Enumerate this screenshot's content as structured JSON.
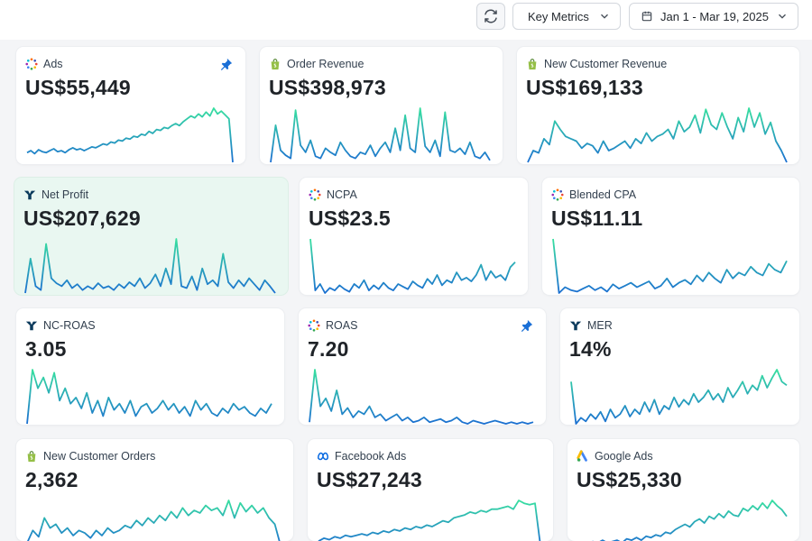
{
  "toolbar": {
    "refresh_icon": "refresh-icon",
    "metrics_label": "Key Metrics",
    "date_range": "Jan 1 - Mar 19, 2025"
  },
  "colors": {
    "line_start": "#1b6fd1",
    "line_end": "#38e0a0",
    "highlight_card": "#e9f7f1",
    "pin": "#1a6fd6"
  },
  "cards": [
    {
      "id": "ads",
      "title": "Ads",
      "value": "US$55,449",
      "icon": "multicolor-dots-icon",
      "pinned": true,
      "trend": [
        10,
        12,
        9,
        13,
        11,
        10,
        12,
        14,
        11,
        12,
        10,
        13,
        15,
        13,
        14,
        12,
        14,
        16,
        15,
        17,
        19,
        18,
        21,
        20,
        23,
        22,
        25,
        24,
        27,
        26,
        29,
        28,
        32,
        30,
        34,
        33,
        36,
        35,
        38,
        40,
        38,
        42,
        45,
        48,
        46,
        50,
        47,
        52,
        48,
        56,
        50,
        53,
        49,
        45,
        0
      ]
    },
    {
      "id": "order-revenue",
      "title": "Order Revenue",
      "value": "US$398,973",
      "icon": "shopify-bag-icon",
      "pinned": false,
      "trend": [
        8,
        45,
        20,
        15,
        12,
        60,
        25,
        18,
        30,
        14,
        12,
        22,
        18,
        15,
        28,
        20,
        14,
        12,
        18,
        16,
        25,
        14,
        22,
        28,
        18,
        42,
        20,
        55,
        22,
        18,
        62,
        24,
        18,
        30,
        14,
        58,
        20,
        18,
        22,
        16,
        28,
        14,
        12,
        18,
        10
      ]
    },
    {
      "id": "new-customer-revenue",
      "title": "New Customer Revenue",
      "value": "US$169,133",
      "icon": "shopify-bag-icon",
      "pinned": false,
      "trend": [
        10,
        20,
        18,
        30,
        25,
        45,
        38,
        32,
        30,
        28,
        22,
        26,
        24,
        18,
        28,
        20,
        22,
        25,
        28,
        22,
        30,
        26,
        35,
        28,
        32,
        34,
        38,
        30,
        45,
        36,
        40,
        50,
        35,
        55,
        42,
        38,
        52,
        40,
        30,
        48,
        36,
        56,
        40,
        52,
        34,
        44,
        28,
        20,
        10
      ]
    },
    {
      "id": "net-profit",
      "title": "Net Profit",
      "value": "US$207,629",
      "icon": "triple-whale-icon",
      "pinned": false,
      "trend": [
        5,
        40,
        12,
        8,
        55,
        20,
        15,
        12,
        18,
        10,
        14,
        8,
        12,
        9,
        15,
        10,
        12,
        8,
        14,
        10,
        16,
        12,
        20,
        10,
        15,
        24,
        12,
        30,
        14,
        60,
        12,
        10,
        22,
        8,
        30,
        14,
        18,
        12,
        45,
        16,
        10,
        18,
        12,
        20,
        14,
        8,
        18,
        12,
        5
      ]
    },
    {
      "id": "ncpa",
      "title": "NCPA",
      "value": "US$23.5",
      "icon": "multicolor-dots-icon",
      "pinned": false,
      "trend": [
        50,
        10,
        15,
        8,
        12,
        10,
        14,
        11,
        9,
        15,
        12,
        18,
        10,
        14,
        11,
        16,
        12,
        10,
        15,
        13,
        11,
        17,
        14,
        12,
        19,
        15,
        22,
        14,
        18,
        16,
        24,
        18,
        20,
        17,
        22,
        30,
        18,
        25,
        20,
        22,
        18,
        28,
        32
      ]
    },
    {
      "id": "blended-cpa",
      "title": "Blended CPA",
      "value": "US$11.11",
      "icon": "multicolor-dots-icon",
      "pinned": false,
      "trend": [
        45,
        8,
        12,
        10,
        9,
        11,
        13,
        10,
        12,
        9,
        14,
        11,
        13,
        15,
        12,
        14,
        16,
        11,
        13,
        18,
        12,
        15,
        17,
        14,
        20,
        16,
        22,
        18,
        15,
        24,
        18,
        22,
        20,
        26,
        22,
        20,
        28,
        24,
        22,
        30
      ]
    },
    {
      "id": "nc-roas",
      "title": "NC-ROAS",
      "value": "3.05",
      "icon": "triple-whale-icon",
      "pinned": false,
      "trend": [
        5,
        40,
        28,
        35,
        25,
        38,
        20,
        28,
        18,
        22,
        15,
        25,
        12,
        20,
        10,
        22,
        14,
        18,
        12,
        20,
        10,
        16,
        18,
        12,
        15,
        20,
        14,
        18,
        12,
        16,
        10,
        20,
        14,
        18,
        12,
        10,
        15,
        12,
        18,
        14,
        16,
        12,
        10,
        15,
        12,
        18
      ]
    },
    {
      "id": "roas",
      "title": "ROAS",
      "value": "7.20",
      "icon": "multicolor-dots-icon",
      "pinned": true,
      "trend": [
        5,
        38,
        15,
        20,
        12,
        25,
        10,
        14,
        8,
        12,
        10,
        15,
        8,
        10,
        6,
        8,
        10,
        6,
        8,
        5,
        6,
        8,
        5,
        6,
        7,
        5,
        6,
        8,
        5,
        4,
        6,
        5,
        4,
        5,
        6,
        5,
        4,
        5,
        4,
        5,
        4,
        5
      ]
    },
    {
      "id": "mer",
      "title": "MER",
      "value": "14%",
      "icon": "triple-whale-icon",
      "pinned": false,
      "trend": [
        45,
        10,
        15,
        12,
        18,
        14,
        20,
        12,
        22,
        15,
        18,
        25,
        16,
        22,
        18,
        28,
        20,
        30,
        18,
        25,
        22,
        32,
        24,
        30,
        26,
        35,
        28,
        32,
        38,
        30,
        35,
        28,
        40,
        32,
        38,
        45,
        35,
        42,
        38,
        50,
        40,
        48,
        55,
        45,
        42
      ]
    },
    {
      "id": "new-customer-orders",
      "title": "New Customer Orders",
      "value": "2,362",
      "icon": "shopify-bag-icon",
      "pinned": false,
      "trend": [
        10,
        20,
        15,
        30,
        22,
        25,
        18,
        22,
        16,
        20,
        18,
        14,
        20,
        16,
        22,
        18,
        20,
        24,
        22,
        28,
        24,
        30,
        26,
        32,
        28,
        35,
        30,
        38,
        32,
        36,
        34,
        40,
        36,
        38,
        32,
        44,
        30,
        42,
        35,
        40,
        34,
        38,
        30,
        25,
        8
      ]
    },
    {
      "id": "facebook-ads",
      "title": "Facebook Ads",
      "value": "US$27,243",
      "icon": "meta-icon",
      "pinned": false,
      "trend": [
        8,
        10,
        9,
        11,
        10,
        12,
        11,
        12,
        13,
        12,
        14,
        13,
        15,
        14,
        16,
        15,
        17,
        16,
        18,
        17,
        19,
        18,
        20,
        22,
        21,
        24,
        25,
        26,
        28,
        27,
        29,
        28,
        30,
        30,
        31,
        32,
        30,
        36,
        34,
        33,
        34,
        5
      ]
    },
    {
      "id": "google-ads",
      "title": "Google Ads",
      "value": "US$25,330",
      "icon": "google-ads-icon",
      "pinned": false,
      "trend": [
        8,
        10,
        9,
        11,
        10,
        12,
        10,
        11,
        12,
        10,
        13,
        12,
        14,
        12,
        15,
        14,
        16,
        15,
        18,
        17,
        20,
        22,
        24,
        22,
        26,
        28,
        25,
        30,
        28,
        32,
        29,
        34,
        31,
        30,
        36,
        34,
        38,
        35,
        40,
        36,
        42,
        38,
        35,
        30
      ]
    }
  ]
}
